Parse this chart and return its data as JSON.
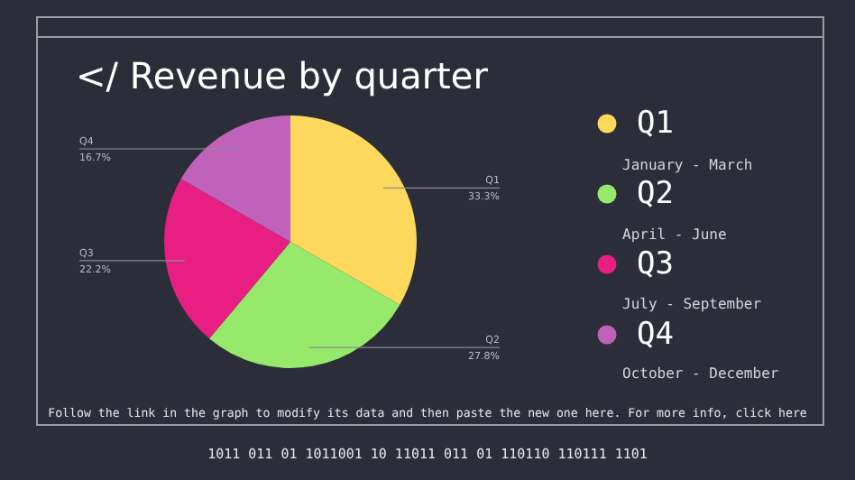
{
  "chart_data": {
    "type": "pie",
    "title": "</ Revenue by quarter",
    "categories": [
      "Q1",
      "Q2",
      "Q3",
      "Q4"
    ],
    "values": [
      33.3,
      27.8,
      22.2,
      16.7
    ],
    "value_labels": [
      "33.3%",
      "27.8%",
      "22.2%",
      "16.7%"
    ],
    "colors": [
      "#fdd85d",
      "#97e96b",
      "#e91e83",
      "#c062b9"
    ],
    "legend": "right",
    "annotations": [
      "January - March",
      "April - June",
      "July - September",
      "October - December",
      "Follow the link in the graph to modify its data and then paste the new one here. For more info, click here",
      "1011 011 01 1011001 10 11011 011 01 110110 110111 1101"
    ]
  }
}
